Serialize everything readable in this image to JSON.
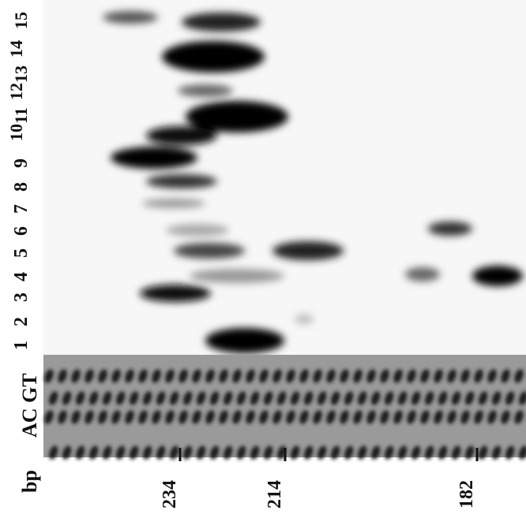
{
  "lane_labels": [
    "1",
    "2",
    "3",
    "4",
    "5",
    "6",
    "7",
    "8",
    "9",
    "10",
    "11",
    "12",
    "13",
    "14",
    "15"
  ],
  "sequence_label": "AC GT",
  "size_label": "bp",
  "markers": [
    "234",
    "214",
    "182"
  ]
}
